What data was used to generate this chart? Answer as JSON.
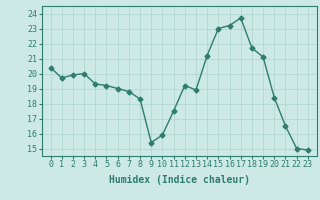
{
  "x": [
    0,
    1,
    2,
    3,
    4,
    5,
    6,
    7,
    8,
    9,
    10,
    11,
    12,
    13,
    14,
    15,
    16,
    17,
    18,
    19,
    20,
    21,
    22,
    23
  ],
  "y": [
    20.4,
    19.7,
    19.9,
    20.0,
    19.3,
    19.2,
    19.0,
    18.8,
    18.3,
    15.4,
    15.9,
    17.5,
    19.2,
    18.9,
    21.2,
    23.0,
    23.2,
    23.7,
    21.7,
    21.1,
    18.4,
    16.5,
    15.0,
    14.9
  ],
  "line_color": "#2e7d6e",
  "marker": "D",
  "markersize": 2.5,
  "linewidth": 1.0,
  "bg_color": "#cce9e5",
  "grid_color": "#b0d4cf",
  "axis_color": "#2e7d6e",
  "xlabel": "Humidex (Indice chaleur)",
  "xlabel_fontsize": 7,
  "tick_fontsize": 6,
  "ylim": [
    14.5,
    24.5
  ],
  "yticks": [
    15,
    16,
    17,
    18,
    19,
    20,
    21,
    22,
    23,
    24
  ],
  "xlim": [
    -0.8,
    23.8
  ]
}
